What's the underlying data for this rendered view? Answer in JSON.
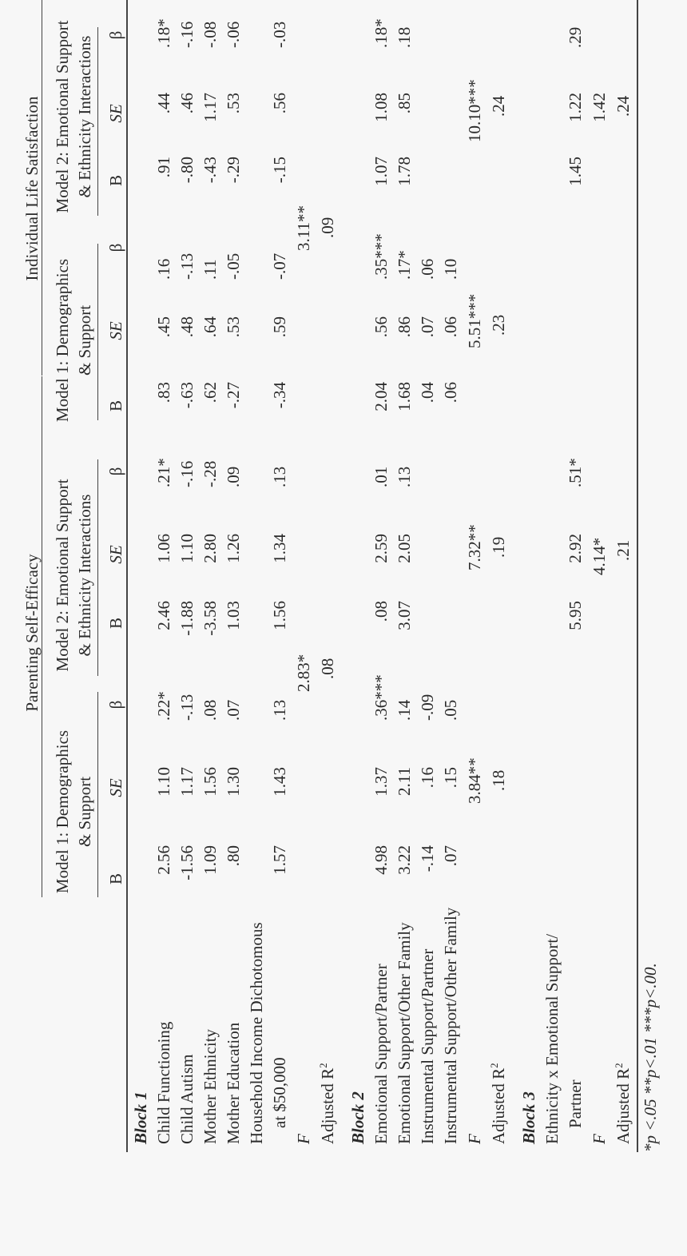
{
  "table": {
    "group_headers": [
      "Parenting Self-Efficacy",
      "Individual Life Satisfaction"
    ],
    "model_headers": [
      [
        "Model 1: Demographics",
        "& Support"
      ],
      [
        "Model 2: Emotional Support",
        "& Ethnicity Interactions"
      ],
      [
        "Model 1: Demographics",
        "& Support"
      ],
      [
        "Model 2: Emotional Support",
        "& Ethnicity Interactions"
      ]
    ],
    "col_headers": [
      "B",
      "SE",
      "β",
      "B",
      "SE",
      "β",
      "B",
      "SE",
      "β",
      "B",
      "SE",
      "β"
    ],
    "block_labels": [
      "Block 1",
      "Block 2",
      "Block 3"
    ],
    "row_labels": {
      "child_functioning": "Child Functioning",
      "child_autism": "Child Autism",
      "mother_ethnicity": "Mother Ethnicity",
      "mother_education": "Mother Education",
      "household_income_1": "Household Income Dichotomous",
      "household_income_2": "at $50,000",
      "f_b1": "F",
      "adj_r2_b1": "Adjusted R",
      "emo_partner": "Emotional Support/Partner",
      "emo_family": "Emotional Support/Other Family",
      "instr_partner": "Instrumental Support/Partner",
      "instr_family": "Instrumental Support/Other Family",
      "f_b2": "F",
      "adj_r2_b2": "Adjusted R",
      "ethnicity_x_1": "Ethnicity x Emotional Support/",
      "ethnicity_x_2": "Partner",
      "f_b3": "F",
      "adj_r2_b3": "Adjusted R"
    },
    "superscript_2": "2",
    "rows": {
      "child_functioning": [
        "2.56",
        "1.10",
        ".22*",
        "2.46",
        "1.06",
        ".21*",
        ".83",
        ".45",
        ".16",
        ".91",
        ".44",
        ".18*"
      ],
      "child_autism": [
        "-1.56",
        "1.17",
        "-.13",
        "-1.88",
        "1.10",
        "-.16",
        "-.63",
        ".48",
        "-.13",
        "-.80",
        ".46",
        "-.16"
      ],
      "mother_ethnicity": [
        "1.09",
        "1.56",
        ".08",
        "-3.58",
        "2.80",
        "-.28",
        ".62",
        ".64",
        ".11",
        "-.43",
        "1.17",
        "-.08"
      ],
      "mother_education": [
        ".80",
        "1.30",
        ".07",
        "1.03",
        "1.26",
        ".09",
        "-.27",
        ".53",
        "-.05",
        "-.29",
        ".53",
        "-.06"
      ],
      "household_income": [
        "1.57",
        "1.43",
        ".13",
        "1.56",
        "1.34",
        ".13",
        "-.34",
        ".59",
        "-.07",
        "-.15",
        ".56",
        "-.03"
      ],
      "emo_partner": [
        "4.98",
        "1.37",
        ".36***",
        ".08",
        "2.59",
        ".01",
        "2.04",
        ".56",
        ".35***",
        "1.07",
        "1.08",
        ".18*"
      ],
      "emo_family": [
        "3.22",
        "2.11",
        ".14",
        "3.07",
        "2.05",
        ".13",
        "1.68",
        ".86",
        ".17*",
        "1.78",
        ".85",
        ".18"
      ],
      "instr_partner": [
        "-.14",
        ".16",
        "-.09",
        ".04",
        ".07",
        ".06"
      ],
      "instr_family": [
        ".07",
        ".15",
        ".05",
        ".06",
        ".06",
        ".10"
      ],
      "ethnicity_x": [
        "5.95",
        "2.92",
        ".51*",
        "1.45",
        "1.22",
        ".29"
      ]
    },
    "f_values": {
      "b1": [
        "2.83*",
        "3.11**"
      ],
      "b2": [
        "3.84**",
        "7.32**",
        "5.51***",
        "10.10***"
      ],
      "b3": [
        "4.14*",
        "1.42"
      ]
    },
    "adj_r2_values": {
      "b1": [
        ".08",
        ".09"
      ],
      "b2": [
        ".18",
        ".19",
        ".23",
        ".24"
      ],
      "b3": [
        ".21",
        ".24"
      ]
    },
    "footnote": "*p <.05 **p<.01 ***p<.00."
  }
}
